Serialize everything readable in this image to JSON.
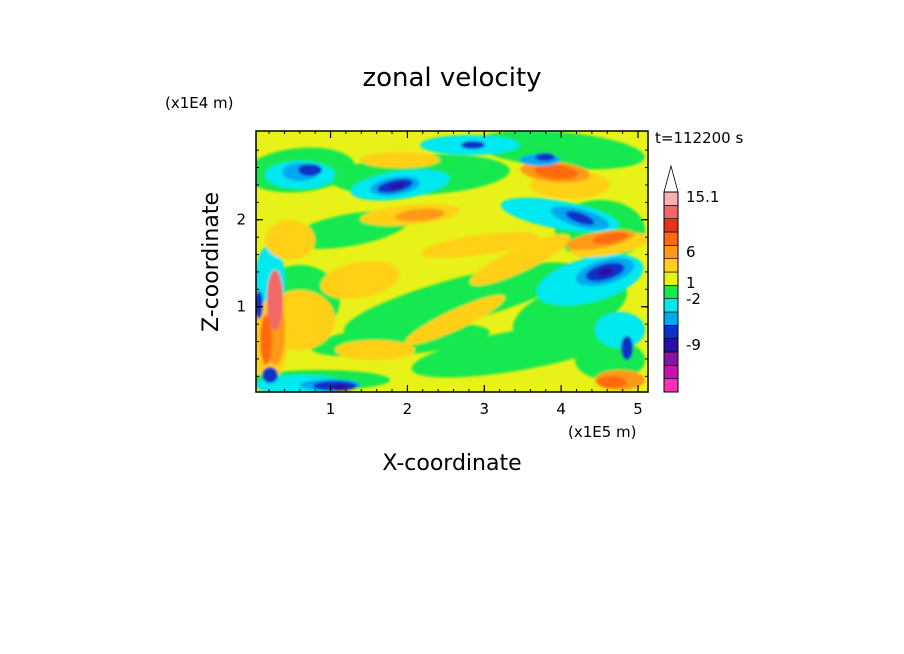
{
  "chart_data": {
    "type": "heatmap",
    "title": "zonal velocity",
    "xlabel": "X-coordinate",
    "ylabel": "Z-coordinate",
    "x_unit": "(x1E5 m)",
    "y_unit": "(x1E4 m)",
    "time_label": "t=112200 s",
    "xlim": [
      0.03,
      5.13
    ],
    "ylim": [
      0.02,
      3.02
    ],
    "x_ticks": [
      1,
      2,
      3,
      4,
      5
    ],
    "y_ticks": [
      1,
      2
    ],
    "x_tick_labels": [
      "1",
      "2",
      "3",
      "4",
      "5"
    ],
    "y_tick_labels": [
      "1",
      "2"
    ],
    "colorbar": {
      "levels": [
        {
          "color": "#ff2fb8"
        },
        {
          "color": "#c80fb0"
        },
        {
          "color": "#8a12a8"
        },
        {
          "color": "#2a10a0"
        },
        {
          "color": "#0a30c8"
        },
        {
          "color": "#00a8f0"
        },
        {
          "color": "#00e8f0"
        },
        {
          "color": "#18e850"
        },
        {
          "color": "#e8f218"
        },
        {
          "color": "#ffd018"
        },
        {
          "color": "#ff9a18"
        },
        {
          "color": "#ff6a10"
        },
        {
          "color": "#e83020"
        },
        {
          "color": "#f26868"
        },
        {
          "color": "#f8b0b0"
        }
      ],
      "tick_labels": [
        "15.1",
        "6",
        "1",
        "-2",
        "-9"
      ],
      "extend": "max"
    },
    "value_description_source": "filled contour field of zonal velocity"
  }
}
